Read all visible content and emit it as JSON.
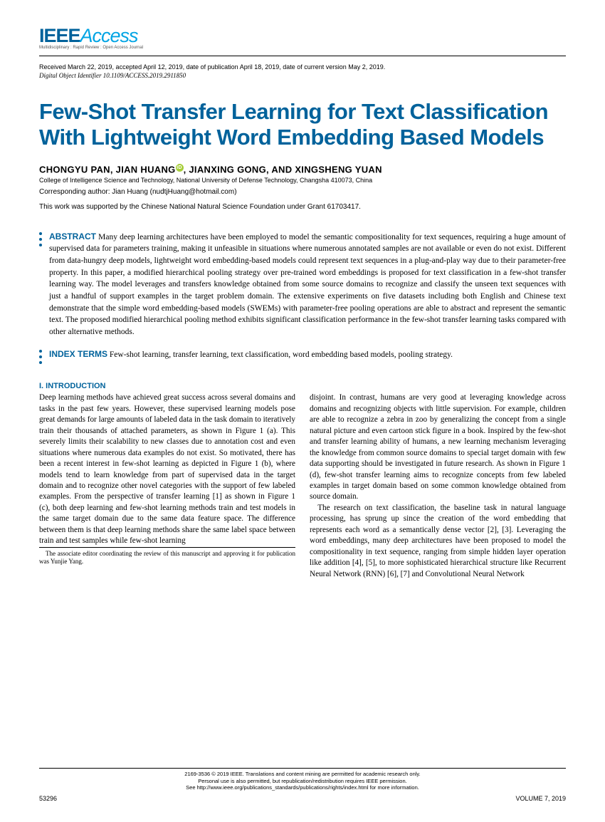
{
  "logo": {
    "ieee": "IEEE",
    "access": "Access",
    "tagline": "Multidisciplinary : Rapid Review : Open Access Journal"
  },
  "header": {
    "dates": "Received March 22, 2019, accepted April 12, 2019, date of publication April 18, 2019, date of current version May 2, 2019.",
    "doi": "Digital Object Identifier 10.1109/ACCESS.2019.2911850"
  },
  "title": "Few-Shot Transfer Learning for Text Classification With Lightweight Word Embedding Based Models",
  "authors": {
    "line_prefix": "CHONGYU PAN, JIAN HUANG",
    "line_suffix": ", JIANXING GONG, AND XINGSHENG YUAN",
    "affiliation": "College of Intelligence Science and Technology, National University of Defense Technology, Changsha 410073, China",
    "corresponding": "Corresponding author: Jian Huang (nudtjHuang@hotmail.com)",
    "support": "This work was supported by the Chinese National Natural Science Foundation under Grant 61703417."
  },
  "abstract": {
    "label": "ABSTRACT",
    "text": "Many deep learning architectures have been employed to model the semantic compositionality for text sequences, requiring a huge amount of supervised data for parameters training, making it unfeasible in situations where numerous annotated samples are not available or even do not exist. Different from data-hungry deep models, lightweight word embedding-based models could represent text sequences in a plug-and-play way due to their parameter-free property. In this paper, a modified hierarchical pooling strategy over pre-trained word embeddings is proposed for text classification in a few-shot transfer learning way. The model leverages and transfers knowledge obtained from some source domains to recognize and classify the unseen text sequences with just a handful of support examples in the target problem domain. The extensive experiments on five datasets including both English and Chinese text demonstrate that the simple word embedding-based models (SWEMs) with parameter-free pooling operations are able to abstract and represent the semantic text. The proposed modified hierarchical pooling method exhibits significant classification performance in the few-shot transfer learning tasks compared with other alternative methods."
  },
  "index_terms": {
    "label": "INDEX TERMS",
    "text": "Few-shot learning, transfer learning, text classification, word embedding based models, pooling strategy."
  },
  "section1": {
    "heading": "I. INTRODUCTION",
    "para1": "Deep learning methods have achieved great success across several domains and tasks in the past few years. However, these supervised learning models pose great demands for large amounts of labeled data in the task domain to iteratively train their thousands of attached parameters, as shown in Figure 1 (a). This severely limits their scalability to new classes due to annotation cost and even situations where numerous data examples do not exist. So motivated, there has been a recent interest in few-shot learning as depicted in Figure 1 (b), where models tend to learn knowledge from part of supervised data in the target domain and to recognize other novel categories with the support of few labeled examples. From the perspective of transfer learning [1] as shown in Figure 1 (c), both deep learning and few-shot learning methods train and test models in the same target domain due to the same data feature space. The difference between them is that deep learning methods share the same label space between train and test samples while few-shot learning",
    "editor_note": "The associate editor coordinating the review of this manuscript and approving it for publication was Yunjie Yang.",
    "para2": "disjoint. In contrast, humans are very good at leveraging knowledge across domains and recognizing objects with little supervision. For example, children are able to recognize a zebra in zoo by generalizing the concept from a single natural picture and even cartoon stick figure in a book. Inspired by the few-shot and transfer learning ability of humans, a new learning mechanism leveraging the knowledge from common source domains to special target domain with few data supporting should be investigated in future research. As shown in Figure 1 (d), few-shot transfer learning aims to recognize concepts from few labeled examples in target domain based on some common knowledge obtained from source domain.",
    "para3": "The research on text classification, the baseline task in natural language processing, has sprung up since the creation of the word embedding that represents each word as a semantically dense vector [2], [3]. Leveraging the word embeddings, many deep architectures have been proposed to model the compositionality in text sequence, ranging from simple hidden layer operation like addition [4], [5], to more sophisticated hierarchical structure like Recurrent Neural Network (RNN) [6], [7] and Convolutional Neural Network"
  },
  "footer": {
    "copyright": "2169-3536 © 2019 IEEE. Translations and content mining are permitted for academic research only.",
    "permission": "Personal use is also permitted, but republication/redistribution requires IEEE permission.",
    "moreinfo": "See http://www.ieee.org/publications_standards/publications/rights/index.html for more information.",
    "page": "53296",
    "volume": "VOLUME 7, 2019"
  }
}
